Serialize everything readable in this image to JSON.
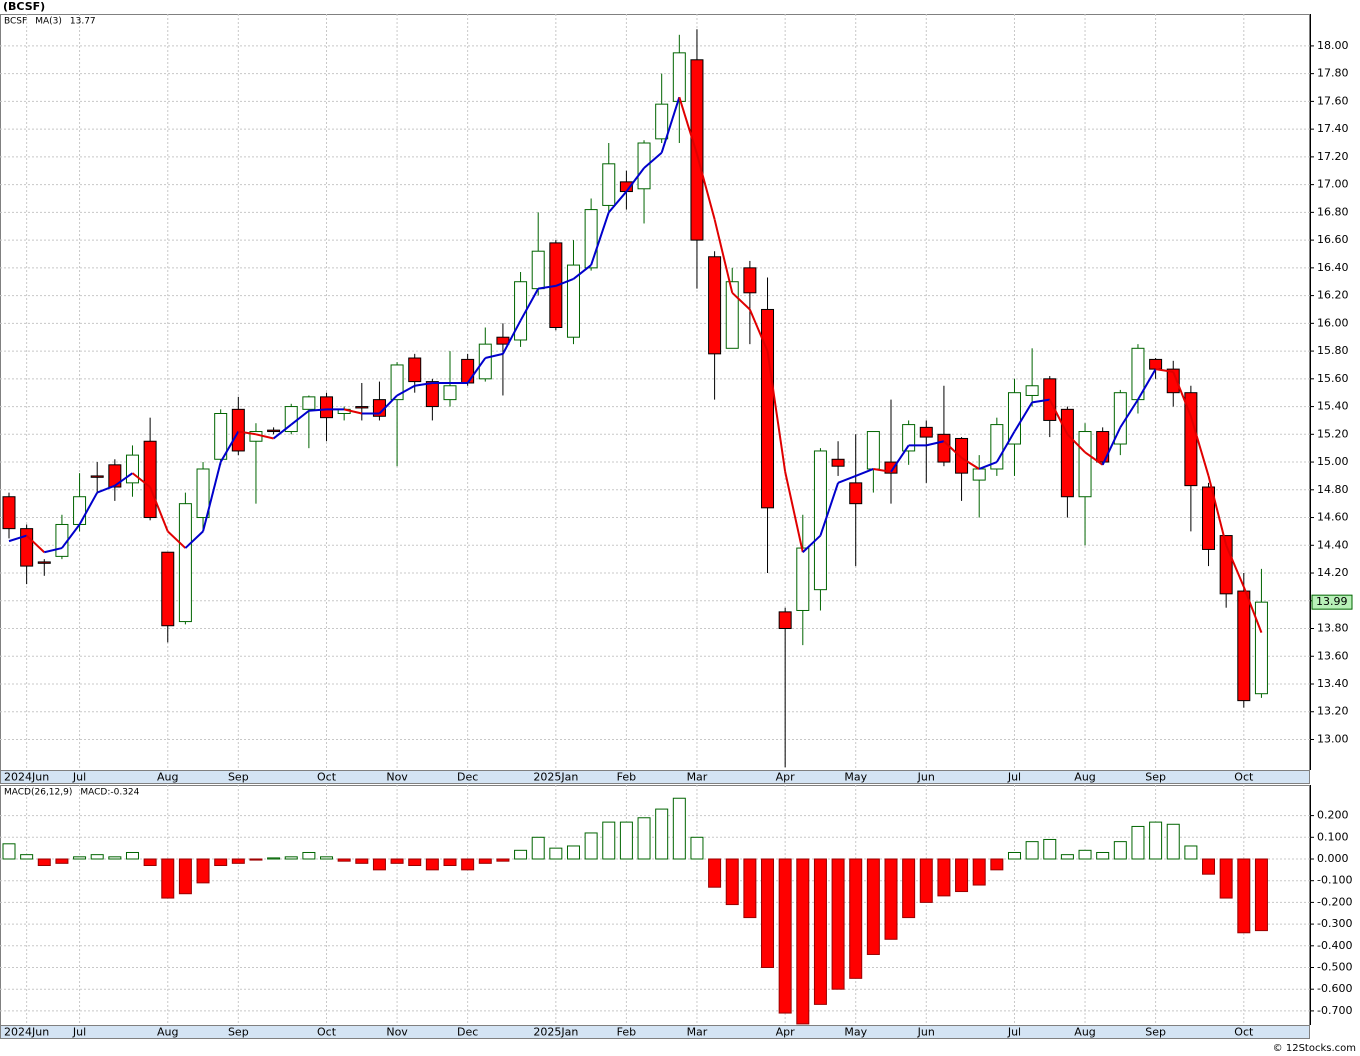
{
  "title": "(BCSF)",
  "footer": "© 12Stocks.com",
  "chart_data": [
    {
      "type": "candlestick",
      "legend": [
        "BCSF",
        "MA(3)",
        "13.77"
      ],
      "categories": [
        null,
        "2024Jun",
        null,
        null,
        "Jul",
        null,
        null,
        null,
        null,
        "Aug",
        null,
        null,
        null,
        "Sep",
        null,
        null,
        null,
        null,
        "Oct",
        null,
        null,
        null,
        "Nov",
        null,
        null,
        null,
        "Dec",
        null,
        null,
        null,
        null,
        "2025Jan",
        null,
        null,
        null,
        "Feb",
        null,
        null,
        null,
        "Mar",
        null,
        null,
        null,
        null,
        "Apr",
        null,
        null,
        null,
        "May",
        null,
        null,
        null,
        "Jun",
        null,
        null,
        null,
        null,
        "Jul",
        null,
        null,
        null,
        "Aug",
        null,
        null,
        null,
        "Sep",
        null,
        null,
        null,
        null,
        "Oct",
        null
      ],
      "open": [
        14.75,
        14.52,
        14.28,
        14.32,
        14.55,
        14.9,
        14.98,
        14.85,
        15.15,
        14.35,
        13.85,
        14.6,
        15.02,
        15.38,
        15.15,
        15.23,
        15.22,
        15.38,
        15.47,
        15.35,
        15.4,
        15.45,
        15.45,
        15.75,
        15.58,
        15.45,
        15.74,
        15.6,
        15.9,
        15.88,
        16.25,
        16.58,
        15.9,
        16.4,
        16.85,
        17.02,
        16.97,
        17.33,
        17.6,
        17.9,
        16.48,
        15.82,
        16.4,
        16.1,
        13.92,
        13.93,
        14.08,
        15.02,
        14.85,
        14.95,
        15.0,
        15.08,
        15.25,
        15.2,
        15.17,
        14.87,
        14.95,
        15.13,
        15.48,
        15.6,
        15.38,
        14.75,
        15.22,
        15.13,
        15.45,
        15.74,
        15.67,
        15.5,
        14.82,
        14.47,
        14.07,
        13.33
      ],
      "high": [
        14.78,
        14.55,
        14.3,
        14.62,
        14.92,
        15.0,
        15.02,
        15.12,
        15.32,
        14.35,
        14.78,
        15.0,
        15.38,
        15.47,
        15.28,
        15.25,
        15.42,
        15.48,
        15.5,
        15.4,
        15.57,
        15.58,
        15.72,
        15.78,
        15.6,
        15.8,
        15.78,
        15.97,
        16.0,
        16.37,
        16.8,
        16.6,
        16.6,
        16.9,
        17.3,
        17.1,
        17.32,
        17.8,
        18.08,
        18.12,
        16.52,
        16.4,
        16.45,
        16.33,
        13.95,
        14.62,
        15.1,
        15.15,
        15.2,
        15.22,
        15.45,
        15.3,
        15.3,
        15.55,
        15.18,
        15.05,
        15.32,
        15.6,
        15.82,
        15.62,
        15.4,
        15.28,
        15.25,
        15.52,
        15.85,
        15.75,
        15.73,
        15.55,
        14.85,
        14.47,
        14.2,
        14.23
      ],
      "low": [
        14.45,
        14.12,
        14.18,
        14.3,
        14.5,
        14.78,
        14.72,
        14.75,
        14.58,
        13.7,
        13.83,
        14.5,
        14.98,
        15.05,
        14.7,
        15.2,
        15.2,
        15.1,
        15.15,
        15.3,
        15.3,
        15.3,
        14.97,
        15.5,
        15.3,
        15.4,
        15.55,
        15.58,
        15.48,
        15.83,
        16.2,
        15.95,
        15.85,
        16.38,
        16.8,
        16.82,
        16.72,
        17.3,
        17.3,
        16.25,
        15.45,
        15.82,
        15.85,
        14.2,
        12.8,
        13.68,
        13.93,
        14.9,
        14.25,
        14.78,
        14.7,
        14.98,
        14.85,
        14.97,
        14.72,
        14.6,
        14.9,
        14.9,
        15.4,
        15.18,
        14.6,
        14.4,
        14.98,
        15.05,
        15.35,
        15.6,
        15.4,
        14.5,
        14.25,
        13.95,
        13.23,
        13.3
      ],
      "close": [
        14.52,
        14.25,
        14.27,
        14.55,
        14.75,
        14.89,
        14.82,
        15.05,
        14.6,
        13.82,
        14.7,
        14.95,
        15.35,
        15.08,
        15.22,
        15.22,
        15.4,
        15.47,
        15.32,
        15.38,
        15.39,
        15.33,
        15.7,
        15.58,
        15.4,
        15.55,
        15.57,
        15.85,
        15.85,
        16.3,
        16.52,
        15.97,
        16.42,
        16.82,
        17.15,
        16.95,
        17.3,
        17.58,
        17.95,
        16.6,
        15.78,
        16.3,
        16.22,
        14.67,
        13.8,
        14.38,
        15.08,
        14.97,
        14.7,
        15.22,
        14.92,
        15.27,
        15.18,
        15.0,
        14.92,
        14.95,
        15.27,
        15.5,
        15.55,
        15.3,
        14.75,
        15.22,
        15.0,
        15.5,
        15.82,
        15.67,
        15.5,
        14.83,
        14.37,
        14.05,
        13.28,
        13.99
      ],
      "up_color": "#ffffff",
      "up_edge": "#006400",
      "down_color": "#ff0000",
      "down_edge": "#000000",
      "series": [
        {
          "name": "MA(3)",
          "color": "#0000cc",
          "down_color": "#e00000",
          "values": [
            14.43,
            14.47,
            14.35,
            14.38,
            14.55,
            14.78,
            14.83,
            14.92,
            14.82,
            14.5,
            14.38,
            14.5,
            15.0,
            15.22,
            15.2,
            15.17,
            15.27,
            15.37,
            15.38,
            15.38,
            15.35,
            15.35,
            15.48,
            15.55,
            15.57,
            15.57,
            15.57,
            15.75,
            15.78,
            16.02,
            16.25,
            16.27,
            16.32,
            16.42,
            16.8,
            16.95,
            17.12,
            17.23,
            17.63,
            17.22,
            16.75,
            16.22,
            16.1,
            15.8,
            14.93,
            14.35,
            14.47,
            14.85,
            14.9,
            14.95,
            14.93,
            15.12,
            15.12,
            15.15,
            15.03,
            14.95,
            15.0,
            15.22,
            15.43,
            15.45,
            15.2,
            15.07,
            14.98,
            15.25,
            15.45,
            15.67,
            15.65,
            15.33,
            14.9,
            14.4,
            14.1,
            13.77
          ]
        }
      ],
      "last_price": {
        "value": 13.99,
        "label": "13.99"
      },
      "ylim": [
        12.78,
        18.23
      ],
      "yticks": [
        {
          "value": 13,
          "label": "13.00"
        },
        {
          "value": 13.2,
          "label": "13.20"
        },
        {
          "value": 13.4,
          "label": "13.40"
        },
        {
          "value": 13.6,
          "label": "13.60"
        },
        {
          "value": 13.8,
          "label": "13.80"
        },
        {
          "value": 14,
          "label": "14.00"
        },
        {
          "value": 14.2,
          "label": "14.20"
        },
        {
          "value": 14.4,
          "label": "14.40"
        },
        {
          "value": 14.6,
          "label": "14.60"
        },
        {
          "value": 14.8,
          "label": "14.80"
        },
        {
          "value": 15,
          "label": "15.00"
        },
        {
          "value": 15.2,
          "label": "15.20"
        },
        {
          "value": 15.4,
          "label": "15.40"
        },
        {
          "value": 15.6,
          "label": "15.60"
        },
        {
          "value": 15.8,
          "label": "15.80"
        },
        {
          "value": 16,
          "label": "16.00"
        },
        {
          "value": 16.2,
          "label": "16.20"
        },
        {
          "value": 16.4,
          "label": "16.40"
        },
        {
          "value": 16.6,
          "label": "16.60"
        },
        {
          "value": 16.8,
          "label": "16.80"
        },
        {
          "value": 17,
          "label": "17.00"
        },
        {
          "value": 17.2,
          "label": "17.20"
        },
        {
          "value": 17.4,
          "label": "17.40"
        },
        {
          "value": 17.6,
          "label": "17.60"
        },
        {
          "value": 17.8,
          "label": "17.80"
        },
        {
          "value": 18,
          "label": "18.00"
        }
      ],
      "grid": true
    },
    {
      "type": "bar",
      "legend": [
        "MACD(26,12,9)",
        "MACD:-0.324"
      ],
      "categories": [
        null,
        "2024Jun",
        null,
        null,
        "Jul",
        null,
        null,
        null,
        null,
        "Aug",
        null,
        null,
        null,
        "Sep",
        null,
        null,
        null,
        null,
        "Oct",
        null,
        null,
        null,
        "Nov",
        null,
        null,
        null,
        "Dec",
        null,
        null,
        null,
        null,
        "2025Jan",
        null,
        null,
        null,
        "Feb",
        null,
        null,
        null,
        "Mar",
        null,
        null,
        null,
        null,
        "Apr",
        null,
        null,
        null,
        "May",
        null,
        null,
        null,
        "Jun",
        null,
        null,
        null,
        null,
        "Jul",
        null,
        null,
        null,
        "Aug",
        null,
        null,
        null,
        "Sep",
        null,
        null,
        null,
        null,
        "Oct",
        null
      ],
      "values": [
        0.07,
        0.02,
        -0.03,
        -0.02,
        0.01,
        0.02,
        0.01,
        0.03,
        -0.03,
        -0.18,
        -0.16,
        -0.11,
        -0.03,
        -0.02,
        -0.005,
        0.005,
        0.01,
        0.03,
        0.01,
        -0.01,
        -0.02,
        -0.05,
        -0.02,
        -0.03,
        -0.05,
        -0.03,
        -0.05,
        -0.02,
        -0.01,
        0.04,
        0.1,
        0.05,
        0.06,
        0.12,
        0.17,
        0.17,
        0.19,
        0.23,
        0.28,
        0.1,
        -0.13,
        -0.21,
        -0.27,
        -0.5,
        -0.71,
        -0.76,
        -0.67,
        -0.6,
        -0.55,
        -0.44,
        -0.37,
        -0.27,
        -0.2,
        -0.17,
        -0.15,
        -0.12,
        -0.05,
        0.03,
        0.08,
        0.09,
        0.02,
        0.04,
        0.03,
        0.08,
        0.15,
        0.17,
        0.16,
        0.06,
        -0.07,
        -0.18,
        -0.34,
        -0.33
      ],
      "up_color": "#ffffff",
      "up_edge": "#006400",
      "down_color": "#ff0000",
      "down_edge": "#990000",
      "ylim": [
        -0.765,
        0.341
      ],
      "yticks": [
        {
          "value": 0.2,
          "label": "0.200"
        },
        {
          "value": 0.1,
          "label": "0.100"
        },
        {
          "value": 0,
          "label": "0.000"
        },
        {
          "value": -0.1,
          "label": "-0.100"
        },
        {
          "value": -0.2,
          "label": "-0.200"
        },
        {
          "value": -0.3,
          "label": "-0.300"
        },
        {
          "value": -0.4,
          "label": "-0.400"
        },
        {
          "value": -0.5,
          "label": "-0.500"
        },
        {
          "value": -0.6,
          "label": "-0.600"
        },
        {
          "value": -0.7,
          "label": "-0.700"
        }
      ],
      "grid": true
    }
  ]
}
